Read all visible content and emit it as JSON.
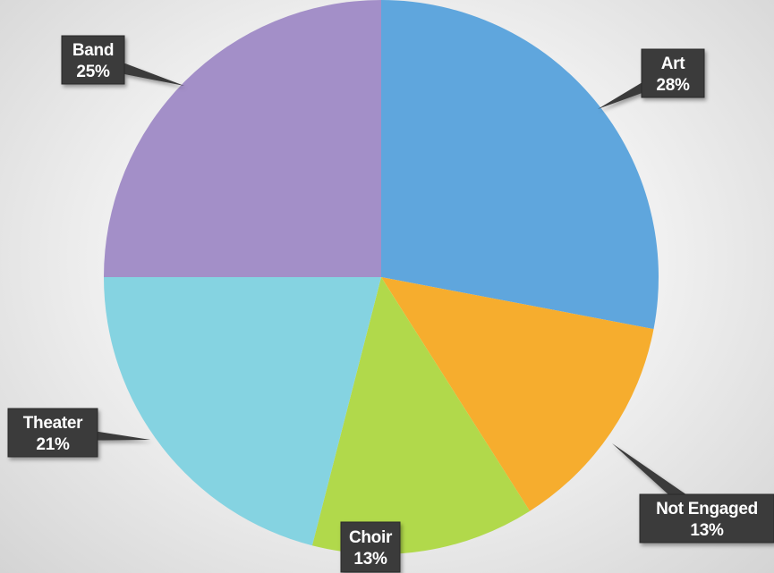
{
  "chart_data": {
    "type": "pie",
    "title": "",
    "slices": [
      {
        "label": "Art",
        "value": 28,
        "display": "28%",
        "color": "#5fa6dd"
      },
      {
        "label": "Not Engaged",
        "value": 13,
        "display": "13%",
        "color": "#f6ad2e"
      },
      {
        "label": "Choir",
        "value": 13,
        "display": "13%",
        "color": "#b1d94b"
      },
      {
        "label": "Theater",
        "value": 21,
        "display": "21%",
        "color": "#85d3e1"
      },
      {
        "label": "Band",
        "value": 25,
        "display": "25%",
        "color": "#a38fc8"
      }
    ],
    "start_angle_deg": 0,
    "direction": "clockwise",
    "data_labels": "callouts-outside"
  }
}
